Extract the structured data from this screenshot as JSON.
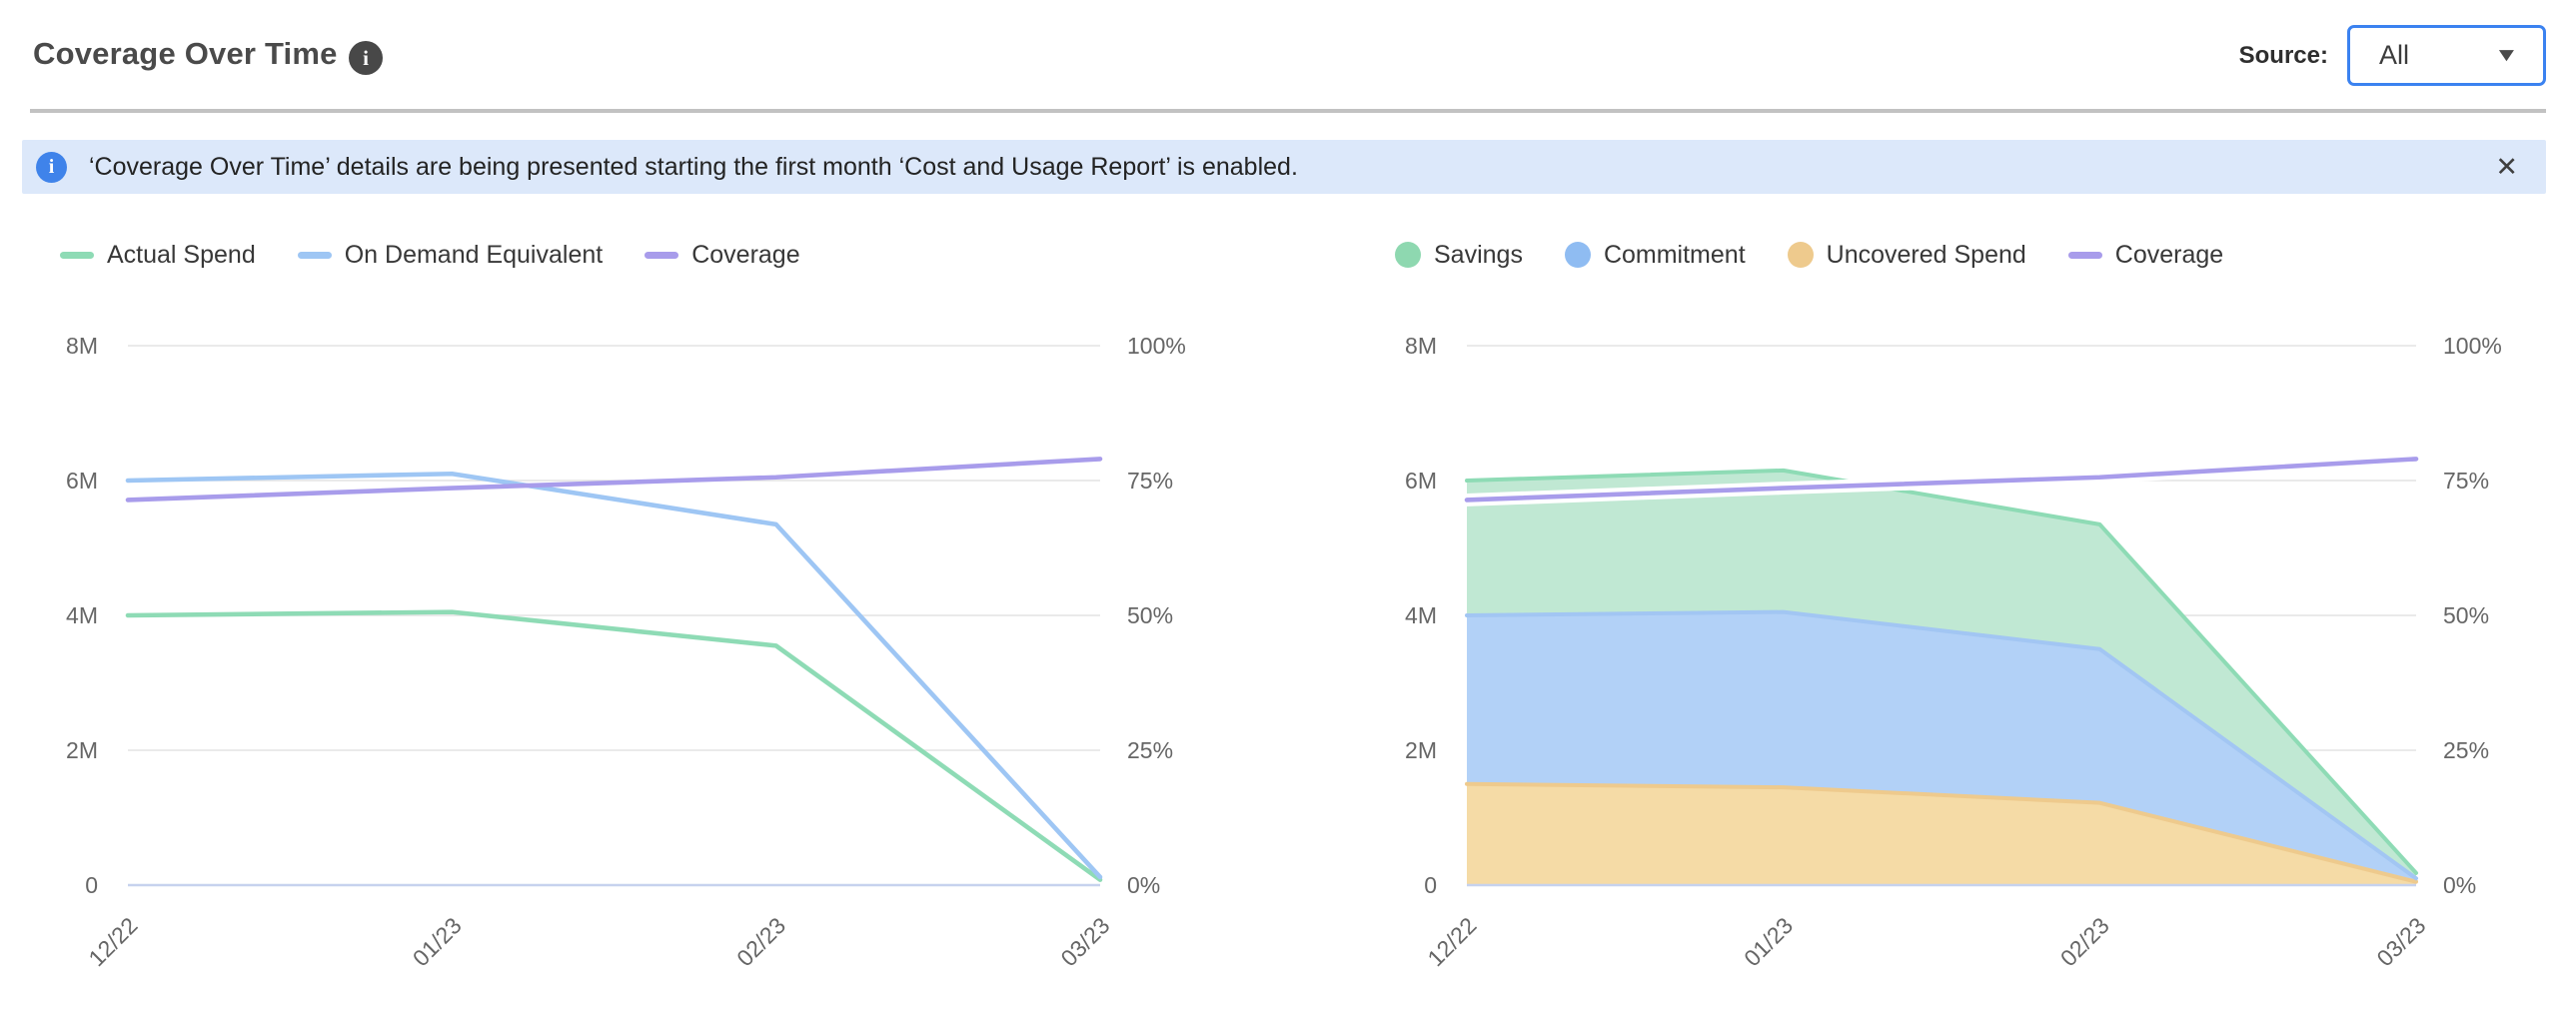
{
  "header": {
    "title": "Coverage Over Time",
    "info_icon": "info-icon",
    "source_label": "Source:",
    "source_value": "All"
  },
  "banner": {
    "icon": "info-icon",
    "text": "‘Coverage Over Time’ details are being presented starting the first month ‘Cost and Usage Report’ is enabled.",
    "close_glyph": "✕"
  },
  "colors": {
    "green": "#8edbb5",
    "green_fill": "#c0e8d3",
    "blue": "#9ec6f4",
    "blue_fill": "#b2d1f7",
    "purple": "#a89ceb",
    "orange": "#eeca8d",
    "orange_fill": "#f5dba6",
    "gridline": "#e4e4e4",
    "baseline": "#c6d2ee",
    "banner_bg": "#dce8fa",
    "banner_icon_bg": "#3f83ea",
    "dropdown_border": "#3b82f0"
  },
  "chart_data": [
    {
      "type": "line",
      "title": "Coverage Over Time (lines)",
      "x": [
        "12/22",
        "01/23",
        "02/23",
        "03/23"
      ],
      "y_left": {
        "label": "",
        "unit": "M",
        "max": 8,
        "ticks": [
          0,
          2,
          4,
          6,
          8
        ],
        "tick_labels": [
          "0",
          "2M",
          "4M",
          "6M",
          "8M"
        ]
      },
      "y_right": {
        "label": "",
        "unit": "%",
        "max": 100,
        "ticks": [
          0,
          25,
          50,
          75,
          100
        ],
        "tick_labels": [
          "0%",
          "25%",
          "50%",
          "75%",
          "100%"
        ]
      },
      "grid": true,
      "legend_position": "top",
      "legend": [
        {
          "label": "Actual Spend",
          "marker": "line",
          "color": "#8edbb5"
        },
        {
          "label": "On Demand Equivalent",
          "marker": "line",
          "color": "#9ec6f4"
        },
        {
          "label": "Coverage",
          "marker": "line",
          "color": "#a89ceb"
        }
      ],
      "series": [
        {
          "name": "Actual Spend",
          "kind": "line",
          "axis": "left",
          "color": "#8edbb5",
          "values": [
            4.0,
            4.05,
            3.55,
            0.08
          ]
        },
        {
          "name": "On Demand Equivalent",
          "kind": "line",
          "axis": "left",
          "color": "#9ec6f4",
          "values": [
            6.0,
            6.1,
            5.35,
            0.12
          ]
        },
        {
          "name": "Coverage",
          "kind": "line",
          "axis": "right",
          "color": "#a89ceb",
          "values": [
            71.4,
            73.6,
            75.6,
            79.0
          ]
        }
      ]
    },
    {
      "type": "area",
      "title": "Coverage Over Time (stacked areas)",
      "stacked": true,
      "x": [
        "12/22",
        "01/23",
        "02/23",
        "03/23"
      ],
      "y_left": {
        "label": "",
        "unit": "M",
        "max": 8,
        "ticks": [
          0,
          2,
          4,
          6,
          8
        ],
        "tick_labels": [
          "0",
          "2M",
          "4M",
          "6M",
          "8M"
        ]
      },
      "y_right": {
        "label": "",
        "unit": "%",
        "max": 100,
        "ticks": [
          0,
          25,
          50,
          75,
          100
        ],
        "tick_labels": [
          "0%",
          "25%",
          "50%",
          "75%",
          "100%"
        ]
      },
      "grid": true,
      "legend_position": "top",
      "legend": [
        {
          "label": "Savings",
          "marker": "circle",
          "color": "#8ed8b0"
        },
        {
          "label": "Commitment",
          "marker": "circle",
          "color": "#8fbcf2"
        },
        {
          "label": "Uncovered Spend",
          "marker": "circle",
          "color": "#eeca8d"
        },
        {
          "label": "Coverage",
          "marker": "line",
          "color": "#a89ceb"
        }
      ],
      "series": [
        {
          "name": "Uncovered Spend",
          "kind": "area",
          "axis": "left",
          "color": "#eeca8d",
          "fill": "#f5dba6",
          "values": [
            1.5,
            1.45,
            1.22,
            0.05
          ]
        },
        {
          "name": "Commitment",
          "kind": "area",
          "axis": "left",
          "color": "#a2c6f3",
          "fill": "#b2d1f7",
          "values": [
            2.5,
            2.6,
            2.28,
            0.05
          ]
        },
        {
          "name": "Savings",
          "kind": "area",
          "axis": "left",
          "color": "#8edbb5",
          "fill": "#c0e8d3",
          "values": [
            2.0,
            2.1,
            1.85,
            0.08
          ]
        },
        {
          "name": "Coverage",
          "kind": "line",
          "axis": "right",
          "color": "#a89ceb",
          "halo": "#ffffff",
          "values": [
            71.4,
            73.6,
            75.6,
            79.0
          ]
        }
      ]
    }
  ]
}
